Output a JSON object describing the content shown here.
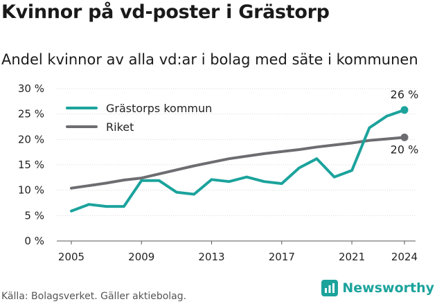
{
  "title": "Kvinnor på vd-poster i Grästorp",
  "subtitle": "Andel kvinnor av alla vd:ar i bolag med säte i kommunen",
  "source": "Källa: Bolagsverket. Gäller aktiebolag.",
  "brand": "Newsworthy",
  "colors": {
    "accent": "#1ba39c",
    "secondary": "#6d6d71",
    "brand": "#1ba39c"
  },
  "chart_data": {
    "type": "line",
    "x_ticks": [
      "2005",
      "2009",
      "2013",
      "2017",
      "2021",
      "2024"
    ],
    "y_ticks": [
      "0 %",
      "5 %",
      "10 %",
      "15 %",
      "20 %",
      "25 %",
      "30 %"
    ],
    "ylim": [
      0,
      30
    ],
    "xlim": [
      2005,
      2024
    ],
    "grid": true,
    "legend_position": "top-left",
    "series": [
      {
        "name": "Grästorps kommun",
        "color": "#1ba39c",
        "end_label": "26 %",
        "x": [
          2005,
          2006,
          2007,
          2008,
          2009,
          2010,
          2011,
          2012,
          2013,
          2014,
          2015,
          2016,
          2017,
          2018,
          2019,
          2020,
          2021,
          2022,
          2023,
          2024
        ],
        "values": [
          5.9,
          7.2,
          6.8,
          6.8,
          11.9,
          11.9,
          9.6,
          9.2,
          12.1,
          11.7,
          12.6,
          11.7,
          11.3,
          14.4,
          16.2,
          12.6,
          13.9,
          22.3,
          24.6,
          25.8
        ]
      },
      {
        "name": "Riket",
        "color": "#6d6d71",
        "end_label": "20 %",
        "x": [
          2005,
          2006,
          2007,
          2008,
          2009,
          2010,
          2011,
          2012,
          2013,
          2014,
          2015,
          2016,
          2017,
          2018,
          2019,
          2020,
          2021,
          2022,
          2023,
          2024
        ],
        "values": [
          10.4,
          10.9,
          11.4,
          12.0,
          12.4,
          13.2,
          14.0,
          14.8,
          15.5,
          16.2,
          16.7,
          17.2,
          17.6,
          18.0,
          18.5,
          18.9,
          19.3,
          19.8,
          20.1,
          20.4
        ]
      }
    ]
  }
}
